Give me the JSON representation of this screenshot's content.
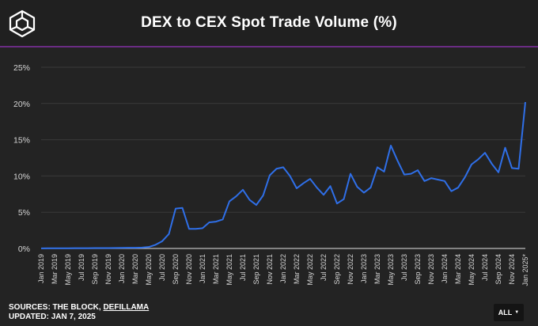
{
  "header": {
    "title": "DEX to CEX Spot Trade Volume (%)",
    "logo_icon": "the-block-cube-logo"
  },
  "footer": {
    "sources_prefix": "SOURCES: THE BLOCK, ",
    "sources_link": "DEFILLAMA",
    "updated": "UPDATED: JAN 7, 2025"
  },
  "controls": {
    "range_label": "ALL",
    "range_caret": "▼"
  },
  "colors": {
    "background": "#232323",
    "line": "#2f6fe8",
    "accent": "#6a2c83",
    "grid": "#3a3a3a"
  },
  "chart_data": {
    "type": "line",
    "title": "DEX to CEX Spot Trade Volume (%)",
    "xlabel": "",
    "ylabel": "",
    "ylim": [
      0,
      25
    ],
    "y_ticks": [
      "0%",
      "5%",
      "10%",
      "15%",
      "20%",
      "25%"
    ],
    "y_tick_values": [
      0,
      5,
      10,
      15,
      20,
      25
    ],
    "x_ticks": [
      "Jan 2019",
      "Mar 2019",
      "May 2019",
      "Jul 2019",
      "Sep 2019",
      "Nov 2019",
      "Jan 2020",
      "Mar 2020",
      "May 2020",
      "Jul 2020",
      "Sep 2020",
      "Nov 2020",
      "Jan 2021",
      "Mar 2021",
      "May 2021",
      "Jul 2021",
      "Sep 2021",
      "Nov 2021",
      "Jan 2022",
      "Mar 2022",
      "May 2022",
      "Jul 2022",
      "Sep 2022",
      "Nov 2022",
      "Jan 2023",
      "Mar 2023",
      "May 2023",
      "Jul 2023",
      "Sep 2023",
      "Nov 2023",
      "Jan 2024",
      "Mar 2024",
      "May 2024",
      "Jul 2024",
      "Sep 2024",
      "Nov 2024",
      "Jan 2025*"
    ],
    "grid": true,
    "legend": "none",
    "series": [
      {
        "name": "DEX to CEX Spot Trade Volume",
        "x": [
          "Jan 2019",
          "Feb 2019",
          "Mar 2019",
          "Apr 2019",
          "May 2019",
          "Jun 2019",
          "Jul 2019",
          "Aug 2019",
          "Sep 2019",
          "Oct 2019",
          "Nov 2019",
          "Dec 2019",
          "Jan 2020",
          "Feb 2020",
          "Mar 2020",
          "Apr 2020",
          "May 2020",
          "Jun 2020",
          "Jul 2020",
          "Aug 2020",
          "Sep 2020",
          "Oct 2020",
          "Nov 2020",
          "Dec 2020",
          "Jan 2021",
          "Feb 2021",
          "Mar 2021",
          "Apr 2021",
          "May 2021",
          "Jun 2021",
          "Jul 2021",
          "Aug 2021",
          "Sep 2021",
          "Oct 2021",
          "Nov 2021",
          "Dec 2021",
          "Jan 2022",
          "Feb 2022",
          "Mar 2022",
          "Apr 2022",
          "May 2022",
          "Jun 2022",
          "Jul 2022",
          "Aug 2022",
          "Sep 2022",
          "Oct 2022",
          "Nov 2022",
          "Dec 2022",
          "Jan 2023",
          "Feb 2023",
          "Mar 2023",
          "Apr 2023",
          "May 2023",
          "Jun 2023",
          "Jul 2023",
          "Aug 2023",
          "Sep 2023",
          "Oct 2023",
          "Nov 2023",
          "Dec 2023",
          "Jan 2024",
          "Feb 2024",
          "Mar 2024",
          "Apr 2024",
          "May 2024",
          "Jun 2024",
          "Jul 2024",
          "Aug 2024",
          "Sep 2024",
          "Oct 2024",
          "Nov 2024",
          "Dec 2024",
          "Jan 2025"
        ],
        "values": [
          0.02,
          0.03,
          0.03,
          0.03,
          0.03,
          0.04,
          0.04,
          0.04,
          0.05,
          0.05,
          0.06,
          0.07,
          0.08,
          0.1,
          0.1,
          0.12,
          0.2,
          0.5,
          1.0,
          2.0,
          5.5,
          5.6,
          2.7,
          2.7,
          2.8,
          3.6,
          3.7,
          4.0,
          6.5,
          7.2,
          8.1,
          6.7,
          6.0,
          7.3,
          10.1,
          11.0,
          11.2,
          10.0,
          8.3,
          9.0,
          9.6,
          8.4,
          7.4,
          8.6,
          6.2,
          6.8,
          10.3,
          8.5,
          7.7,
          8.4,
          11.2,
          10.6,
          14.2,
          12.1,
          10.2,
          10.3,
          10.8,
          9.3,
          9.7,
          9.5,
          9.3,
          7.9,
          8.4,
          9.8,
          11.6,
          12.3,
          13.2,
          11.7,
          10.5,
          13.9,
          11.1,
          11.0,
          20.2
        ]
      }
    ]
  }
}
